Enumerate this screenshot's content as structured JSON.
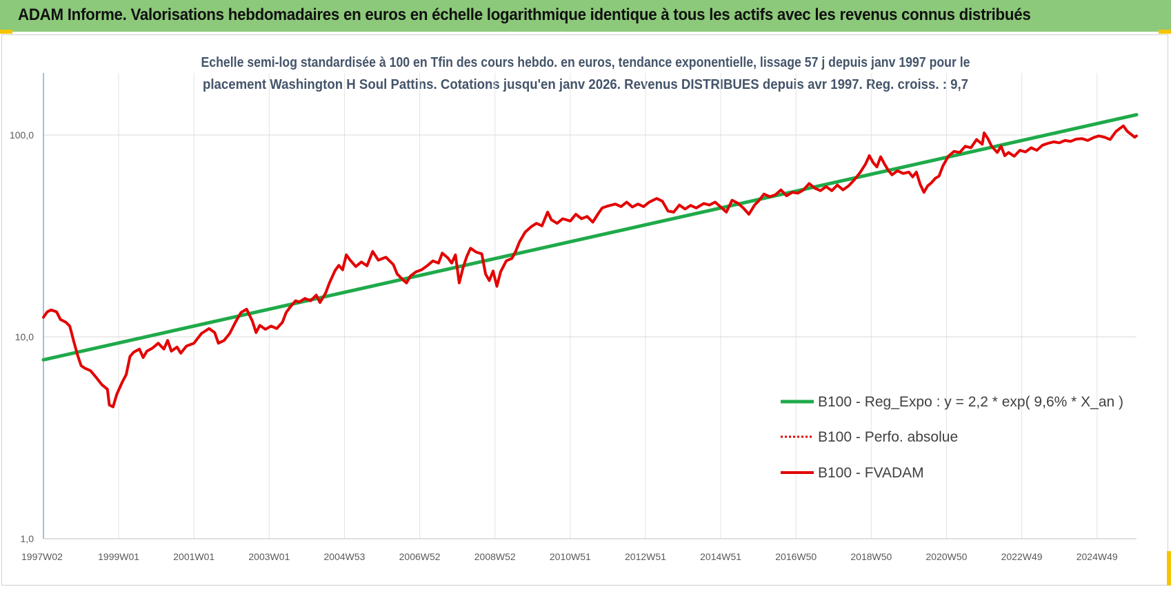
{
  "banner": {
    "title": "ADAM Informe. Valorisations hebdomadaires en euros en échelle logarithmique identique à tous les actifs avec les revenus connus distribués"
  },
  "chart_data": {
    "type": "line",
    "title_lines": [
      "Echelle semi-log standardisée à 100 en Tfin des cours hebdo. en euros, tendance exponentielle, lissage 57 j depuis janv 1997 pour le",
      "placement Washington H Soul Pattins. Cotations jusqu'en janv 2026. Revenus DISTRIBUES depuis avr 1997. Reg. croiss. : 9,7"
    ],
    "y_scale": "log",
    "ylim": [
      1,
      200
    ],
    "xlim": [
      1997.0,
      2026.05
    ],
    "y_ticks": [
      {
        "v": 1,
        "label": "1,0"
      },
      {
        "v": 10,
        "label": "10,0"
      },
      {
        "v": 100,
        "label": "100,0"
      }
    ],
    "x_ticks": [
      {
        "v": 1997.0,
        "label": "1997W02"
      },
      {
        "v": 1999.0,
        "label": "1999W01"
      },
      {
        "v": 2001.0,
        "label": "2001W01"
      },
      {
        "v": 2003.0,
        "label": "2003W01"
      },
      {
        "v": 2005.0,
        "label": "2004W53"
      },
      {
        "v": 2007.0,
        "label": "2006W52"
      },
      {
        "v": 2009.0,
        "label": "2008W52"
      },
      {
        "v": 2011.0,
        "label": "2010W51"
      },
      {
        "v": 2013.0,
        "label": "2012W51"
      },
      {
        "v": 2015.0,
        "label": "2014W51"
      },
      {
        "v": 2017.0,
        "label": "2016W50"
      },
      {
        "v": 2019.0,
        "label": "2018W50"
      },
      {
        "v": 2021.0,
        "label": "2020W50"
      },
      {
        "v": 2023.0,
        "label": "2022W49"
      },
      {
        "v": 2025.0,
        "label": "2024W49"
      }
    ],
    "grid": true,
    "legend_position": "bottom-right",
    "series": [
      {
        "name": "B100 - Reg_Expo : y = 2,2 * exp( 9,6% *  X_an )",
        "color": "#1faa4b",
        "style": "solid",
        "points": [
          [
            1997.0,
            7.7
          ],
          [
            2026.05,
            126
          ]
        ]
      },
      {
        "name": "B100 - Perfo. absolue",
        "color": "#e30000",
        "style": "dotted",
        "points": []
      },
      {
        "name": "B100 - FVADAM",
        "color": "#e30000",
        "style": "solid",
        "points": [
          [
            1997.0,
            12.5
          ],
          [
            1997.1,
            13.3
          ],
          [
            1997.2,
            13.6
          ],
          [
            1997.35,
            13.3
          ],
          [
            1997.45,
            12.2
          ],
          [
            1997.6,
            11.8
          ],
          [
            1997.7,
            11.3
          ],
          [
            1997.8,
            9.6
          ],
          [
            1997.9,
            8.2
          ],
          [
            1998.0,
            7.2
          ],
          [
            1998.1,
            7.0
          ],
          [
            1998.25,
            6.8
          ],
          [
            1998.4,
            6.3
          ],
          [
            1998.55,
            5.8
          ],
          [
            1998.7,
            5.5
          ],
          [
            1998.75,
            4.6
          ],
          [
            1998.85,
            4.5
          ],
          [
            1998.95,
            5.2
          ],
          [
            1999.1,
            6.0
          ],
          [
            1999.2,
            6.5
          ],
          [
            1999.3,
            8.0
          ],
          [
            1999.4,
            8.4
          ],
          [
            1999.55,
            8.7
          ],
          [
            1999.65,
            7.9
          ],
          [
            1999.75,
            8.5
          ],
          [
            1999.9,
            8.8
          ],
          [
            2000.05,
            9.3
          ],
          [
            2000.2,
            8.7
          ],
          [
            2000.3,
            9.6
          ],
          [
            2000.4,
            8.5
          ],
          [
            2000.55,
            8.9
          ],
          [
            2000.65,
            8.3
          ],
          [
            2000.8,
            9.0
          ],
          [
            2001.0,
            9.3
          ],
          [
            2001.2,
            10.4
          ],
          [
            2001.4,
            11.0
          ],
          [
            2001.55,
            10.5
          ],
          [
            2001.65,
            9.3
          ],
          [
            2001.8,
            9.6
          ],
          [
            2001.95,
            10.4
          ],
          [
            2002.1,
            11.8
          ],
          [
            2002.25,
            13.2
          ],
          [
            2002.4,
            13.7
          ],
          [
            2002.55,
            12.0
          ],
          [
            2002.65,
            10.5
          ],
          [
            2002.75,
            11.4
          ],
          [
            2002.9,
            10.9
          ],
          [
            2003.05,
            11.3
          ],
          [
            2003.2,
            11.0
          ],
          [
            2003.35,
            11.8
          ],
          [
            2003.45,
            13.2
          ],
          [
            2003.55,
            14.0
          ],
          [
            2003.7,
            15.1
          ],
          [
            2003.8,
            14.9
          ],
          [
            2003.95,
            15.5
          ],
          [
            2004.1,
            15.1
          ],
          [
            2004.25,
            16.1
          ],
          [
            2004.35,
            14.8
          ],
          [
            2004.5,
            16.5
          ],
          [
            2004.6,
            18.5
          ],
          [
            2004.75,
            21.3
          ],
          [
            2004.85,
            22.6
          ],
          [
            2004.95,
            21.5
          ],
          [
            2005.05,
            25.5
          ],
          [
            2005.15,
            24.0
          ],
          [
            2005.3,
            22.3
          ],
          [
            2005.45,
            23.5
          ],
          [
            2005.6,
            22.5
          ],
          [
            2005.75,
            26.5
          ],
          [
            2005.9,
            24.0
          ],
          [
            2006.1,
            24.8
          ],
          [
            2006.3,
            22.8
          ],
          [
            2006.4,
            20.5
          ],
          [
            2006.55,
            19.2
          ],
          [
            2006.65,
            18.5
          ],
          [
            2006.75,
            20.0
          ],
          [
            2006.9,
            21.0
          ],
          [
            2007.05,
            21.5
          ],
          [
            2007.2,
            22.5
          ],
          [
            2007.35,
            23.8
          ],
          [
            2007.5,
            23.2
          ],
          [
            2007.6,
            26.0
          ],
          [
            2007.75,
            24.6
          ],
          [
            2007.85,
            23.2
          ],
          [
            2007.95,
            25.5
          ],
          [
            2008.05,
            18.5
          ],
          [
            2008.15,
            22.0
          ],
          [
            2008.25,
            25.0
          ],
          [
            2008.35,
            27.5
          ],
          [
            2008.5,
            26.3
          ],
          [
            2008.65,
            25.8
          ],
          [
            2008.75,
            20.5
          ],
          [
            2008.85,
            19.0
          ],
          [
            2008.95,
            21.2
          ],
          [
            2009.05,
            17.8
          ],
          [
            2009.15,
            21.0
          ],
          [
            2009.3,
            23.8
          ],
          [
            2009.45,
            24.5
          ],
          [
            2009.55,
            26.5
          ],
          [
            2009.65,
            29.5
          ],
          [
            2009.8,
            33.0
          ],
          [
            2009.95,
            35.0
          ],
          [
            2010.1,
            36.5
          ],
          [
            2010.25,
            35.5
          ],
          [
            2010.4,
            41.5
          ],
          [
            2010.5,
            38.0
          ],
          [
            2010.65,
            36.5
          ],
          [
            2010.8,
            38.5
          ],
          [
            2011.0,
            37.5
          ],
          [
            2011.15,
            40.5
          ],
          [
            2011.3,
            38.5
          ],
          [
            2011.45,
            39.5
          ],
          [
            2011.6,
            37.0
          ],
          [
            2011.75,
            41.0
          ],
          [
            2011.85,
            43.5
          ],
          [
            2012.0,
            44.5
          ],
          [
            2012.2,
            45.5
          ],
          [
            2012.35,
            44.2
          ],
          [
            2012.5,
            46.5
          ],
          [
            2012.65,
            44.0
          ],
          [
            2012.8,
            45.5
          ],
          [
            2012.95,
            44.2
          ],
          [
            2013.1,
            46.5
          ],
          [
            2013.3,
            48.5
          ],
          [
            2013.45,
            47.0
          ],
          [
            2013.6,
            42.0
          ],
          [
            2013.75,
            41.5
          ],
          [
            2013.9,
            45.0
          ],
          [
            2014.05,
            43.0
          ],
          [
            2014.2,
            44.8
          ],
          [
            2014.35,
            43.5
          ],
          [
            2014.55,
            45.8
          ],
          [
            2014.7,
            45.0
          ],
          [
            2014.85,
            46.5
          ],
          [
            2015.0,
            44.0
          ],
          [
            2015.15,
            41.5
          ],
          [
            2015.3,
            47.5
          ],
          [
            2015.45,
            46.0
          ],
          [
            2015.6,
            43.5
          ],
          [
            2015.75,
            40.5
          ],
          [
            2015.9,
            45.0
          ],
          [
            2016.0,
            47.0
          ],
          [
            2016.15,
            51.0
          ],
          [
            2016.3,
            49.5
          ],
          [
            2016.45,
            50.5
          ],
          [
            2016.6,
            53.5
          ],
          [
            2016.75,
            50.0
          ],
          [
            2016.9,
            52.0
          ],
          [
            2017.05,
            51.5
          ],
          [
            2017.2,
            53.5
          ],
          [
            2017.35,
            57.5
          ],
          [
            2017.5,
            54.5
          ],
          [
            2017.65,
            53.0
          ],
          [
            2017.8,
            55.5
          ],
          [
            2017.95,
            53.0
          ],
          [
            2018.1,
            56.5
          ],
          [
            2018.25,
            53.5
          ],
          [
            2018.4,
            56.0
          ],
          [
            2018.55,
            60.0
          ],
          [
            2018.7,
            65.0
          ],
          [
            2018.85,
            72.0
          ],
          [
            2018.95,
            79.0
          ],
          [
            2019.05,
            73.0
          ],
          [
            2019.15,
            69.5
          ],
          [
            2019.25,
            78.0
          ],
          [
            2019.35,
            72.0
          ],
          [
            2019.45,
            67.0
          ],
          [
            2019.55,
            63.5
          ],
          [
            2019.7,
            66.5
          ],
          [
            2019.85,
            64.5
          ],
          [
            2020.0,
            65.5
          ],
          [
            2020.1,
            62.0
          ],
          [
            2020.2,
            65.5
          ],
          [
            2020.3,
            57.0
          ],
          [
            2020.4,
            52.0
          ],
          [
            2020.5,
            56.0
          ],
          [
            2020.6,
            58.0
          ],
          [
            2020.7,
            61.0
          ],
          [
            2020.8,
            62.5
          ],
          [
            2020.9,
            70.0
          ],
          [
            2021.05,
            78.5
          ],
          [
            2021.2,
            83.0
          ],
          [
            2021.35,
            82.0
          ],
          [
            2021.5,
            88.0
          ],
          [
            2021.65,
            86.5
          ],
          [
            2021.8,
            95.0
          ],
          [
            2021.95,
            90.0
          ],
          [
            2022.0,
            102.5
          ],
          [
            2022.1,
            96.0
          ],
          [
            2022.2,
            88.0
          ],
          [
            2022.35,
            82.0
          ],
          [
            2022.45,
            88.0
          ],
          [
            2022.55,
            79.0
          ],
          [
            2022.65,
            82.0
          ],
          [
            2022.8,
            78.5
          ],
          [
            2022.95,
            84.0
          ],
          [
            2023.1,
            82.5
          ],
          [
            2023.25,
            86.5
          ],
          [
            2023.4,
            84.0
          ],
          [
            2023.55,
            89.0
          ],
          [
            2023.7,
            91.0
          ],
          [
            2023.85,
            92.5
          ],
          [
            2024.0,
            91.5
          ],
          [
            2024.15,
            94.0
          ],
          [
            2024.3,
            93.0
          ],
          [
            2024.45,
            95.5
          ],
          [
            2024.6,
            96.0
          ],
          [
            2024.75,
            94.0
          ],
          [
            2024.9,
            97.0
          ],
          [
            2025.05,
            99.0
          ],
          [
            2025.2,
            97.5
          ],
          [
            2025.35,
            95.0
          ],
          [
            2025.5,
            104.0
          ],
          [
            2025.6,
            107.5
          ],
          [
            2025.7,
            111.0
          ],
          [
            2025.8,
            104.5
          ],
          [
            2025.9,
            101.0
          ],
          [
            2026.0,
            97.5
          ],
          [
            2026.05,
            99.0
          ]
        ]
      }
    ]
  }
}
